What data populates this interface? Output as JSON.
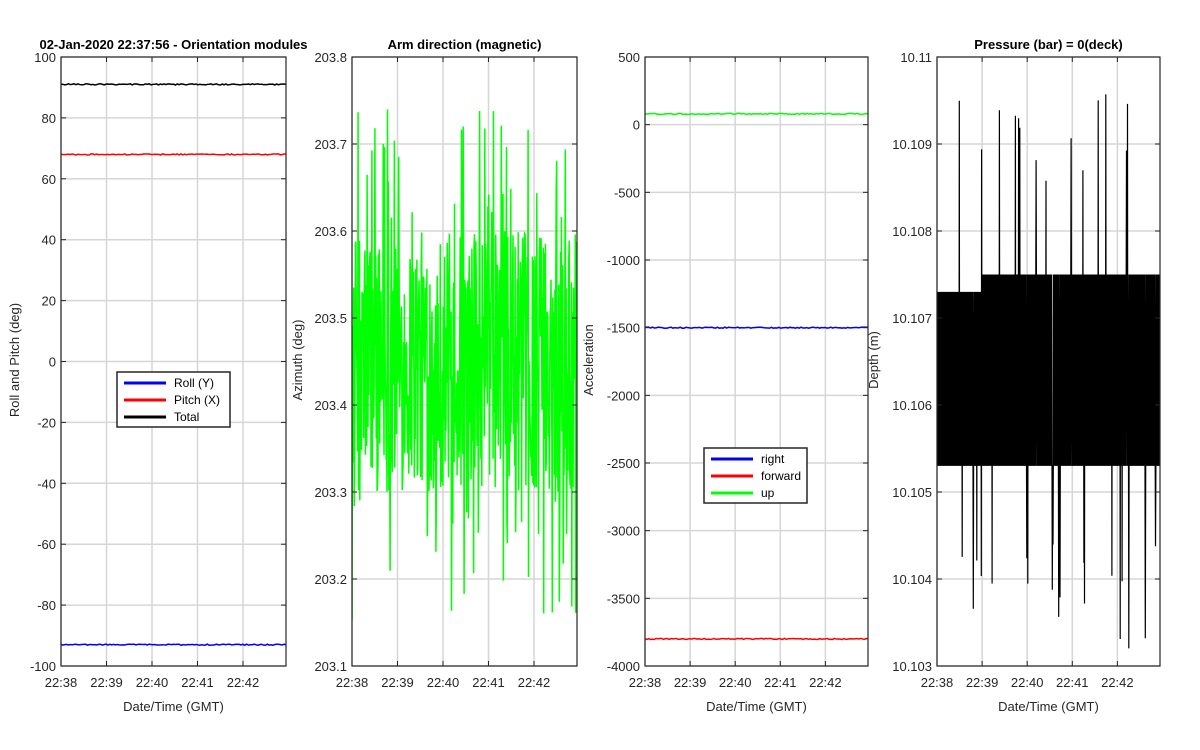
{
  "chart_data": [
    {
      "type": "line",
      "title": "02-Jan-2020 22:37:56 - Orientation modules",
      "xlabel": "Date/Time (GMT)",
      "ylabel": "Roll and Pitch (deg)",
      "xticks": [
        "22:38",
        "22:39",
        "22:40",
        "22:41",
        "22:42"
      ],
      "xlim": [
        "22:38:00",
        "22:42:55"
      ],
      "ylim": [
        -100,
        100
      ],
      "yticks": [
        -100,
        -80,
        -60,
        -40,
        -20,
        0,
        20,
        40,
        60,
        80,
        100
      ],
      "grid": true,
      "legend": {
        "placement": "center"
      },
      "series": [
        {
          "name": "Roll (Y)",
          "color": "#0000ff",
          "values": [
            -93,
            -93
          ]
        },
        {
          "name": "Pitch (X)",
          "color": "#ff0000",
          "values": [
            68,
            68
          ]
        },
        {
          "name": "Total",
          "color": "#000000",
          "values": [
            91,
            91
          ]
        }
      ]
    },
    {
      "type": "line",
      "title": "Arm direction (magnetic)",
      "xlabel": "",
      "ylabel": "Azimuth (deg)",
      "xticks": [
        "22:38",
        "22:39",
        "22:40",
        "22:41",
        "22:42"
      ],
      "xlim": [
        "22:38:00",
        "22:42:55"
      ],
      "ylim": [
        203.1,
        203.8
      ],
      "yticks": [
        "203.1",
        "203.2",
        "203.3",
        "203.4",
        "203.5",
        "203.6",
        "203.7",
        "203.8"
      ],
      "grid": true,
      "series": [
        {
          "color": "#00ff00",
          "range": [
            203.15,
            203.76
          ],
          "typical": [
            203.3,
            203.6
          ],
          "mean": 203.45
        }
      ]
    },
    {
      "type": "line",
      "title": "",
      "xlabel": "Date/Time (GMT)",
      "ylabel": "Acceleration",
      "xticks": [
        "22:38",
        "22:39",
        "22:40",
        "22:41",
        "22:42"
      ],
      "xlim": [
        "22:38:00",
        "22:42:55"
      ],
      "ylim": [
        -4000,
        500
      ],
      "yticks": [
        -4000,
        -3500,
        -3000,
        -2500,
        -2000,
        -1500,
        -1000,
        -500,
        0,
        500
      ],
      "grid": true,
      "legend": {
        "placement": "lower-center"
      },
      "series": [
        {
          "name": "right",
          "color": "#0000ff",
          "values": [
            -1500,
            -1500
          ]
        },
        {
          "name": "forward",
          "color": "#ff0000",
          "values": [
            -3800,
            -3800
          ]
        },
        {
          "name": "up",
          "color": "#00ff00",
          "values": [
            80,
            80
          ]
        }
      ]
    },
    {
      "type": "line",
      "title": "Pressure (bar) = 0(deck)",
      "xlabel": "Date/Time (GMT)",
      "ylabel": "Depth (m)",
      "xticks": [
        "22:38",
        "22:39",
        "22:40",
        "22:41",
        "22:42"
      ],
      "xlim": [
        "22:38:00",
        "22:42:55"
      ],
      "ylim": [
        10.103,
        10.11
      ],
      "yticks": [
        "10.103",
        "10.104",
        "10.105",
        "10.106",
        "10.107",
        "10.108",
        "10.109",
        "10.11"
      ],
      "grid": true,
      "series": [
        {
          "color": "#000000",
          "band": [
            10.1053,
            10.1073
          ],
          "band_after_2241": [
            10.1053,
            10.1075
          ],
          "spikes": [
            10.1032,
            10.1096
          ],
          "mean": 10.1063
        }
      ]
    }
  ]
}
